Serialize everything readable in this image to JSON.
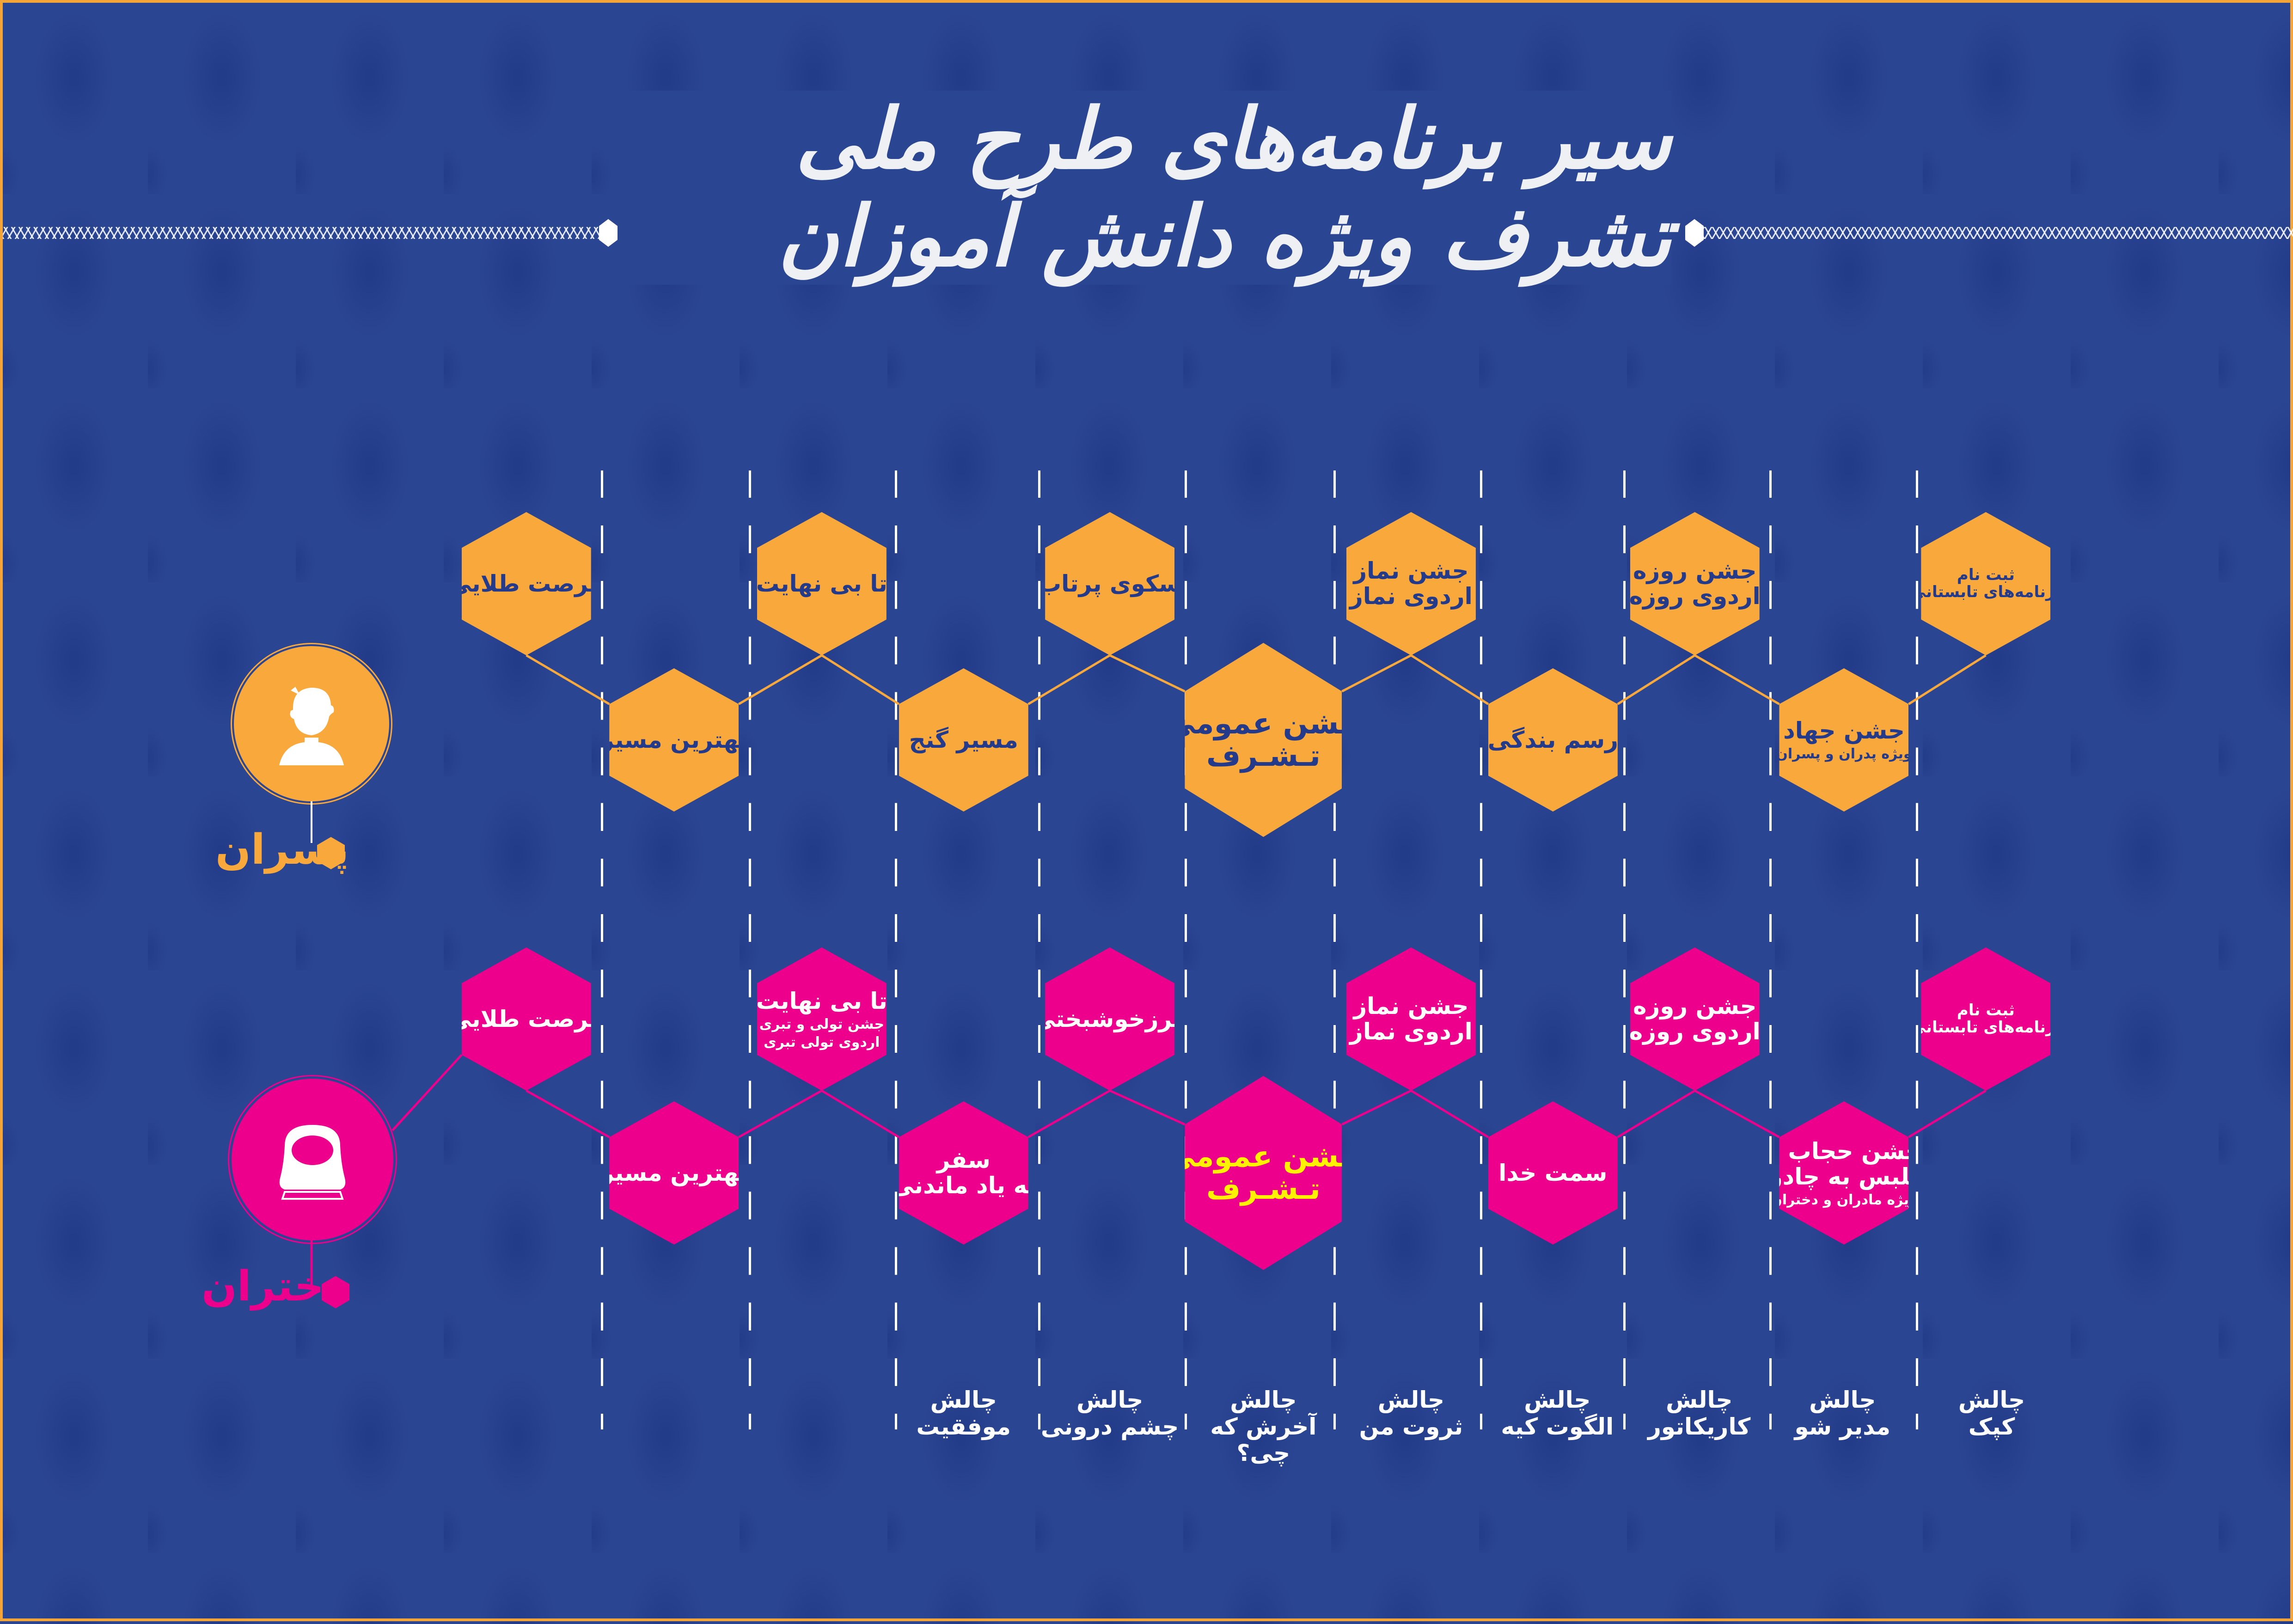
{
  "title": "سیر برنامه‌های طرح ملی تشرف ویژه دانش آموزان",
  "colors": {
    "background": "#2a4592",
    "boys": "#f9a83c",
    "girls": "#ec008c",
    "boys_text": "#243a8a",
    "girls_text": "#ffffff",
    "highlight": "#fff200"
  },
  "boys": {
    "label": "پسران",
    "icon": "boy-avatar-icon",
    "top": [
      {
        "lines": [
          "فرصت طلایی"
        ]
      },
      {
        "lines": [
          "تا بی نهایت"
        ]
      },
      {
        "lines": [
          "سکوی پرتاب"
        ]
      },
      {
        "lines": [
          "جشن نماز",
          "اردوی نماز"
        ]
      },
      {
        "lines": [
          "جشن روزه",
          "اردوی روزه"
        ]
      },
      {
        "lines": [
          "ثبت نام",
          "برنامه‌های تابستانی"
        ]
      }
    ],
    "bottom": [
      {
        "lines": [
          "بهترین مسیر"
        ]
      },
      {
        "lines": [
          "مسیر گنج"
        ]
      },
      {
        "lines": [
          "جشن عمومی",
          "تـشـرف"
        ]
      },
      {
        "lines": [
          "رسم بندگی"
        ]
      },
      {
        "lines": [
          "جشن جهاد"
        ],
        "sub": [
          "(ویژه پدران و پسران)"
        ]
      }
    ]
  },
  "girls": {
    "label": "دختران",
    "icon": "girl-avatar-icon",
    "top": [
      {
        "lines": [
          "فرصت طلایی"
        ]
      },
      {
        "lines": [
          "تا بی نهایت"
        ],
        "sub": [
          "جشن تولی و تبری",
          "اردوی تولی تبری"
        ]
      },
      {
        "lines": [
          "مرزخوشبختی"
        ]
      },
      {
        "lines": [
          "جشن نماز",
          "اردوی نماز"
        ]
      },
      {
        "lines": [
          "جشن روزه",
          "اردوی روزه"
        ]
      },
      {
        "lines": [
          "ثبت نام",
          "برنامه‌های تابستانی"
        ]
      }
    ],
    "bottom": [
      {
        "lines": [
          "بهترین مسیر"
        ]
      },
      {
        "lines": [
          "سفر",
          "به یاد ماندنی"
        ]
      },
      {
        "lines": [
          "جشن عمومی",
          "تـشـرف"
        ]
      },
      {
        "lines": [
          "سمت خدا"
        ]
      },
      {
        "lines": [
          "جشن حجاب و",
          "تلبس به چادر"
        ],
        "sub": [
          "(ویژه مادران و دختران)"
        ]
      }
    ]
  },
  "challenges": [
    [
      "چالش",
      "موفقیت"
    ],
    [
      "چالش",
      "چشم درونی"
    ],
    [
      "چالش",
      "آخرش که چی؟"
    ],
    [
      "چالش",
      "ثروت من"
    ],
    [
      "چالش",
      "الگوت کیه"
    ],
    [
      "چالش",
      "کاریکاتور"
    ],
    [
      "چالش",
      "مدیر شو"
    ],
    [
      "چالش",
      "کپک"
    ]
  ]
}
